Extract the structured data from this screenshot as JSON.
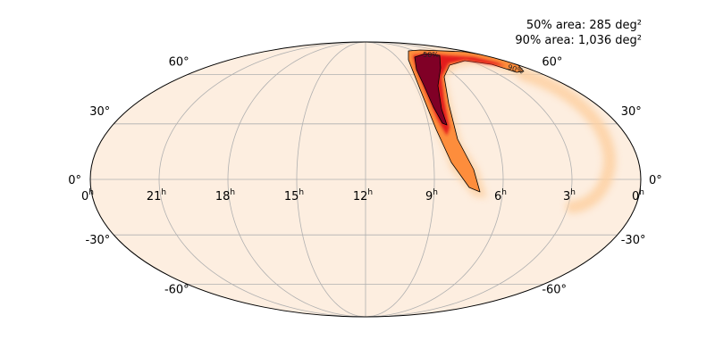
{
  "chart_data": {
    "type": "heatmap",
    "projection": "mollweide",
    "grid": true,
    "area_50": "50% area: 285 deg²",
    "area_90": "90% area: 1,036 deg²",
    "contour_labels": [
      "50%",
      "90%"
    ],
    "ra_ticks": [
      {
        "h": 0,
        "label": "0"
      },
      {
        "h": 21,
        "label": "21"
      },
      {
        "h": 18,
        "label": "18"
      },
      {
        "h": 15,
        "label": "15"
      },
      {
        "h": 12,
        "label": "12"
      },
      {
        "h": 9,
        "label": "9"
      },
      {
        "h": 6,
        "label": "6"
      },
      {
        "h": 3,
        "label": "3"
      },
      {
        "h": 0,
        "label": "0"
      }
    ],
    "ra_unit": "h",
    "dec_ticks": [
      60,
      30,
      0,
      -30,
      -60
    ],
    "dec_labels": [
      "60°",
      "30°",
      "0°",
      "-30°",
      "-60°"
    ],
    "colors": {
      "background": "#fdeee0",
      "grid": "#b0b0b0",
      "low": "#fdd0a2",
      "mid": "#fd8d3c",
      "high": "#e31a1c",
      "peak": "#800026"
    }
  }
}
